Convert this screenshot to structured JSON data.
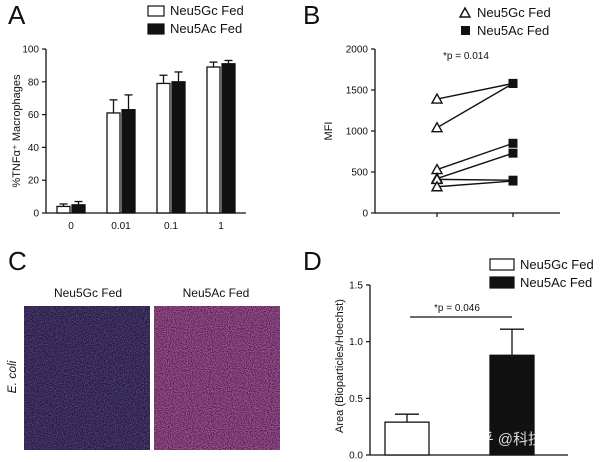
{
  "colors": {
    "black": "#111111",
    "white": "#ffffff",
    "micro_left_bg": "#2a1f4a",
    "micro_right_bg": "#5a1f55"
  },
  "panels": {
    "A": {
      "letter": "A"
    },
    "B": {
      "letter": "B"
    },
    "C": {
      "letter": "C",
      "image_left_label": "Neu5Gc Fed",
      "image_right_label": "Neu5Ac Fed",
      "row_label": "E. coli"
    },
    "D": {
      "letter": "D"
    }
  },
  "watermark": "知乎 @科技小县城",
  "chart_data": [
    {
      "panel": "A",
      "type": "bar",
      "ylabel": "%TNFα⁺ Macrophages",
      "xlabel": "",
      "ylim": [
        0,
        100
      ],
      "yticks": [
        0,
        20,
        40,
        60,
        80,
        100
      ],
      "categories": [
        "0",
        "0.01",
        "0.1",
        "1"
      ],
      "legend": {
        "placement": "top-right",
        "entries": [
          "Neu5Gc Fed",
          "Neu5Ac Fed"
        ]
      },
      "series": [
        {
          "name": "Neu5Gc Fed",
          "fill": "#ffffff",
          "values": [
            4,
            61,
            79,
            89
          ],
          "errors": [
            1.5,
            8,
            5,
            3
          ]
        },
        {
          "name": "Neu5Ac Fed",
          "fill": "#111111",
          "values": [
            5,
            63,
            80,
            91
          ],
          "errors": [
            2,
            9,
            6,
            2
          ]
        }
      ]
    },
    {
      "panel": "B",
      "type": "line",
      "ylabel": "MFI",
      "ylim": [
        0,
        2000
      ],
      "yticks": [
        0,
        500,
        1000,
        1500,
        2000
      ],
      "categories": [
        "Neu5Gc Fed",
        "Neu5Ac Fed"
      ],
      "annotation": "*p = 0.014",
      "legend": {
        "placement": "top-right",
        "entries": [
          "Neu5Gc Fed",
          "Neu5Ac Fed"
        ]
      },
      "pairs": [
        [
          1390,
          1580
        ],
        [
          1040,
          1580
        ],
        [
          530,
          850
        ],
        [
          420,
          730
        ],
        [
          410,
          400
        ],
        [
          320,
          390
        ]
      ]
    },
    {
      "panel": "D",
      "type": "bar",
      "ylabel": "Area (Bioparticles/Hoechst)",
      "ylim": [
        0,
        1.5
      ],
      "yticks": [
        "0.0",
        "0.5",
        "1.0",
        "1.5"
      ],
      "categories": [
        "Neu5Gc Fed",
        "Neu5Ac Fed"
      ],
      "annotation": "*p = 0.046",
      "legend": {
        "placement": "top-right",
        "entries": [
          "Neu5Gc Fed",
          "Neu5Ac Fed"
        ]
      },
      "series": [
        {
          "name": "Neu5Gc Fed",
          "fill": "#ffffff",
          "value": 0.29,
          "error": 0.07
        },
        {
          "name": "Neu5Ac Fed",
          "fill": "#111111",
          "value": 0.88,
          "error": 0.23
        }
      ]
    }
  ]
}
